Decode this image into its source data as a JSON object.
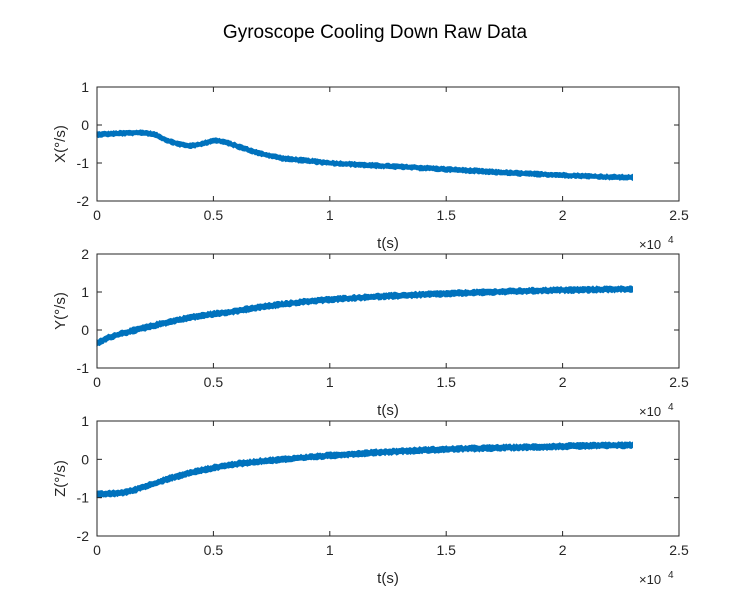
{
  "figure": {
    "title": "Gyroscope Cooling Down Raw Data"
  },
  "chart_data": [
    {
      "type": "line",
      "title": "Gyroscope Cooling Down Raw Data",
      "xlabel": "t(s)",
      "ylabel": "X(°/s)",
      "x_exponent_label": "×10",
      "x_exponent_power": "4",
      "xlim": [
        0,
        2.5
      ],
      "ylim": [
        -2,
        1
      ],
      "xticks": [
        "0",
        "0.5",
        "1",
        "1.5",
        "2",
        "2.5"
      ],
      "yticks": [
        "-2",
        "-1",
        "0",
        "1"
      ],
      "noise_band": 0.06,
      "color": "#0072BD",
      "series": [
        {
          "x": [
            0,
            0.1,
            0.2,
            0.25,
            0.3,
            0.35,
            0.4,
            0.45,
            0.5,
            0.55,
            0.6,
            0.7,
            0.8,
            1.0,
            1.2,
            1.4,
            1.6,
            1.8,
            2.0,
            2.2,
            2.3
          ],
          "y": [
            -0.25,
            -0.22,
            -0.2,
            -0.25,
            -0.4,
            -0.5,
            -0.55,
            -0.5,
            -0.4,
            -0.45,
            -0.55,
            -0.75,
            -0.88,
            -1.0,
            -1.07,
            -1.13,
            -1.2,
            -1.27,
            -1.32,
            -1.37,
            -1.38
          ]
        }
      ]
    },
    {
      "type": "line",
      "xlabel": "t(s)",
      "ylabel": "Y(°/s)",
      "x_exponent_label": "×10",
      "x_exponent_power": "4",
      "xlim": [
        0,
        2.5
      ],
      "ylim": [
        -1,
        2
      ],
      "xticks": [
        "0",
        "0.5",
        "1",
        "1.5",
        "2",
        "2.5"
      ],
      "yticks": [
        "-1",
        "0",
        "1",
        "2"
      ],
      "noise_band": 0.07,
      "color": "#0072BD",
      "series": [
        {
          "x": [
            0,
            0.05,
            0.1,
            0.2,
            0.3,
            0.4,
            0.5,
            0.6,
            0.7,
            0.8,
            0.9,
            1.0,
            1.2,
            1.4,
            1.6,
            1.8,
            2.0,
            2.2,
            2.3
          ],
          "y": [
            -0.35,
            -0.2,
            -0.1,
            0.05,
            0.2,
            0.33,
            0.42,
            0.5,
            0.6,
            0.68,
            0.75,
            0.8,
            0.88,
            0.93,
            0.98,
            1.02,
            1.05,
            1.07,
            1.08
          ]
        }
      ]
    },
    {
      "type": "line",
      "xlabel": "t(s)",
      "ylabel": "Z(°/s)",
      "x_exponent_label": "×10",
      "x_exponent_power": "4",
      "xlim": [
        0,
        2.5
      ],
      "ylim": [
        -2,
        1
      ],
      "xticks": [
        "0",
        "0.5",
        "1",
        "1.5",
        "2",
        "2.5"
      ],
      "yticks": [
        "-2",
        "-1",
        "0",
        "1"
      ],
      "noise_band": 0.07,
      "color": "#0072BD",
      "series": [
        {
          "x": [
            0,
            0.05,
            0.1,
            0.15,
            0.2,
            0.3,
            0.4,
            0.5,
            0.6,
            0.7,
            0.8,
            0.9,
            1.0,
            1.2,
            1.4,
            1.6,
            1.8,
            2.0,
            2.2,
            2.3
          ],
          "y": [
            -0.92,
            -0.9,
            -0.88,
            -0.82,
            -0.72,
            -0.52,
            -0.35,
            -0.22,
            -0.12,
            -0.05,
            0.0,
            0.05,
            0.1,
            0.18,
            0.24,
            0.28,
            0.31,
            0.34,
            0.36,
            0.37
          ]
        }
      ]
    }
  ]
}
